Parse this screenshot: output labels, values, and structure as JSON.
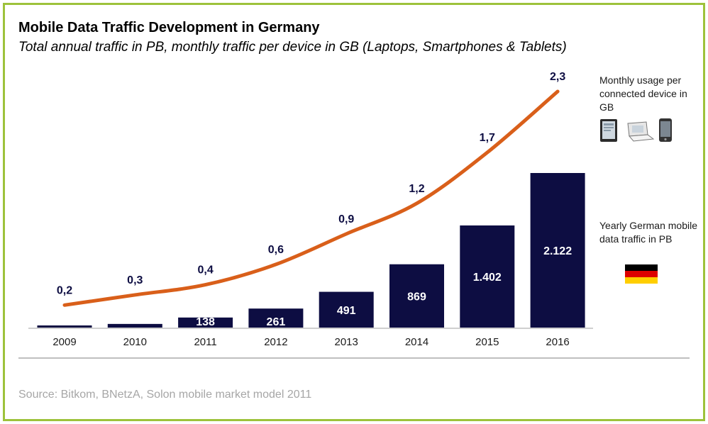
{
  "header": {
    "title": "Mobile Data Traffic Development in Germany",
    "subtitle": "Total annual traffic in PB, monthly traffic per device in GB (Laptops, Smartphones & Tablets)"
  },
  "footer": {
    "source": "Source: Bitkom, BNetzA, Solon mobile market model 2011"
  },
  "legend": {
    "monthly_label": "Monthly usage per connected device in GB",
    "yearly_label": "Yearly German mobile data traffic in PB",
    "device_icons": [
      "tablet-icon",
      "laptop-icon",
      "smartphone-icon"
    ],
    "flag_icon": "germany-flag-icon"
  },
  "colors": {
    "bar": "#0d0d42",
    "line": "#d95f1a",
    "line_label": "#0d0d42",
    "bar_label": "#ffffff",
    "frame": "#9dc23b",
    "flag": [
      "#000000",
      "#dd0000",
      "#ffce00"
    ]
  },
  "chart_data": {
    "type": "bar",
    "categories": [
      "2009",
      "2010",
      "2011",
      "2012",
      "2013",
      "2014",
      "2015",
      "2016"
    ],
    "series": [
      {
        "type": "bar",
        "values": [
          null,
          null,
          138,
          261,
          491,
          869,
          1402,
          2122
        ],
        "labels": [
          "",
          "",
          "138",
          "261",
          "491",
          "869",
          "1.402",
          "2.122"
        ],
        "estimated_values": [
          15,
          50,
          138,
          261,
          491,
          869,
          1402,
          2122
        ]
      },
      {
        "type": "line",
        "values": [
          0.2,
          0.3,
          0.4,
          0.6,
          0.9,
          1.2,
          1.7,
          2.3
        ],
        "labels": [
          "0,2",
          "0,3",
          "0,4",
          "0,6",
          "0,9",
          "1,2",
          "1,7",
          "2,3"
        ]
      }
    ],
    "title": "Mobile Data Traffic Development in Germany",
    "subtitle": "Total annual traffic in PB, monthly traffic per device in GB (Laptops, Smartphones & Tablets)",
    "xlabel": "",
    "ylabel": "",
    "bar_ylim": [
      0,
      2122
    ],
    "line_ylim": [
      0,
      2.3
    ],
    "grid": false,
    "legend_position": "right"
  }
}
